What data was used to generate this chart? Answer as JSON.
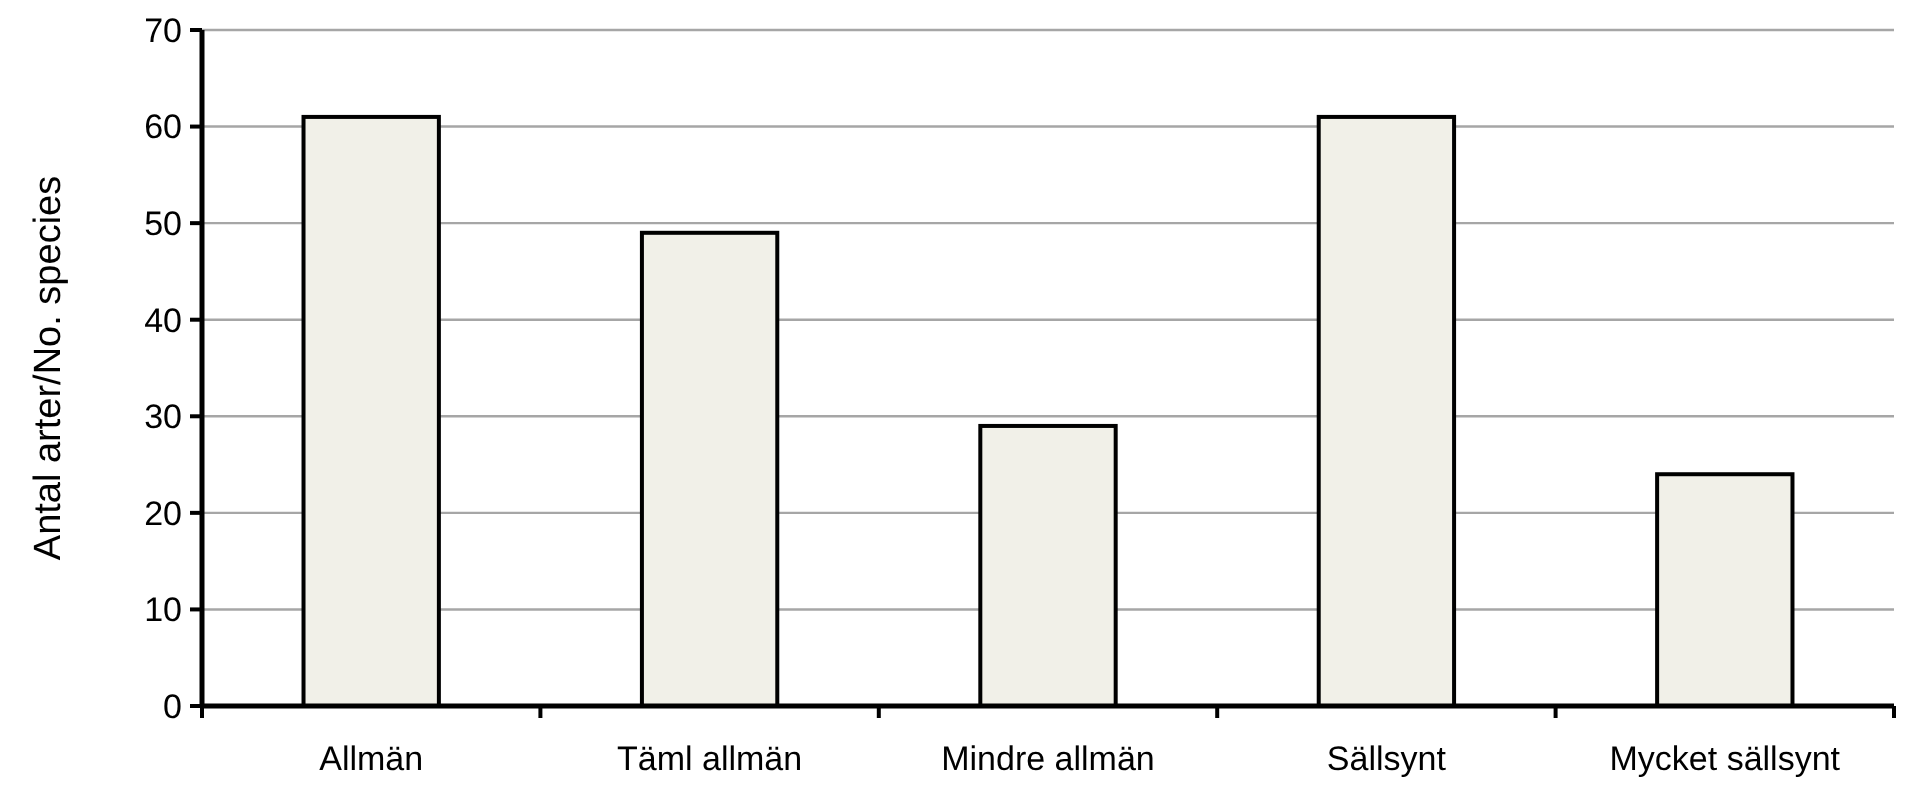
{
  "chart_data": {
    "type": "bar",
    "ylabel": "Antal arter/No. species",
    "categories": [
      "Allmän",
      "Täml allmän",
      "Mindre allmän",
      "Sällsynt",
      "Mycket sällsynt"
    ],
    "values": [
      61,
      49,
      29,
      61,
      24
    ],
    "color": "#f1f0e8",
    "ylim": [
      0,
      70
    ],
    "yticks": [
      0,
      10,
      20,
      30,
      40,
      50,
      60,
      70
    ],
    "grid": "y"
  }
}
